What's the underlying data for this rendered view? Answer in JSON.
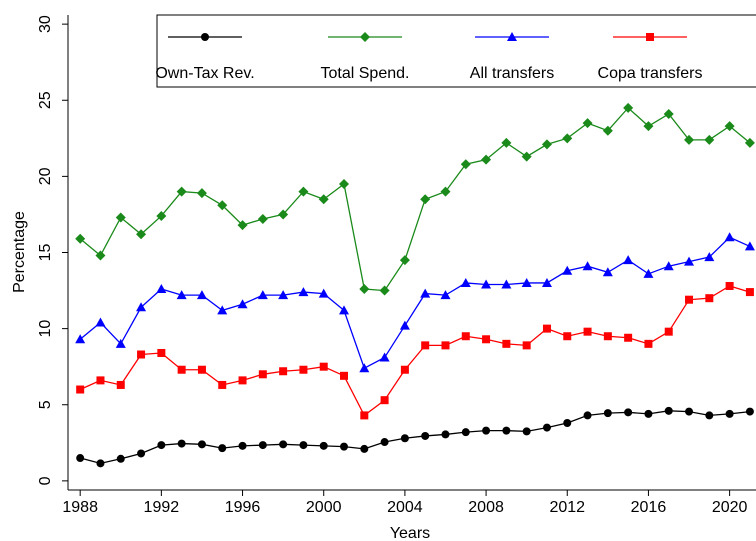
{
  "chart_data": {
    "type": "line",
    "x_label": "Years",
    "y_label": "Percentage",
    "x": [
      1988,
      1989,
      1990,
      1991,
      1992,
      1993,
      1994,
      1995,
      1996,
      1997,
      1998,
      1999,
      2000,
      2001,
      2002,
      2003,
      2004,
      2005,
      2006,
      2007,
      2008,
      2009,
      2010,
      2011,
      2012,
      2013,
      2014,
      2015,
      2016,
      2017,
      2018,
      2019,
      2020,
      2021
    ],
    "series": [
      {
        "name": "Own-Tax Rev.",
        "color": "#000000",
        "marker": "circle",
        "values": [
          1.5,
          1.15,
          1.45,
          1.8,
          2.35,
          2.45,
          2.4,
          2.15,
          2.3,
          2.35,
          2.4,
          2.35,
          2.3,
          2.25,
          2.1,
          2.55,
          2.8,
          2.95,
          3.05,
          3.2,
          3.3,
          3.3,
          3.25,
          3.5,
          3.8,
          4.3,
          4.45,
          4.5,
          4.4,
          4.6,
          4.55,
          4.3,
          4.4,
          4.55
        ]
      },
      {
        "name": "Total Spend.",
        "color": "#1a8a1a",
        "marker": "diamond",
        "values": [
          15.9,
          14.8,
          17.3,
          16.2,
          17.4,
          19,
          18.9,
          18.1,
          16.8,
          17.2,
          17.5,
          19,
          18.5,
          19.5,
          12.6,
          12.5,
          14.5,
          18.5,
          19,
          20.8,
          21.1,
          22.2,
          21.3,
          22.1,
          22.5,
          23.5,
          23,
          24.5,
          23.3,
          24.1,
          22.4,
          22.4,
          23.3,
          22.2
        ]
      },
      {
        "name": "All transfers",
        "color": "#0000ff",
        "marker": "triangle",
        "values": [
          9.3,
          10.4,
          9,
          11.4,
          12.6,
          12.2,
          12.2,
          11.2,
          11.6,
          12.2,
          12.2,
          12.4,
          12.3,
          11.2,
          7.4,
          8.1,
          10.2,
          12.3,
          12.2,
          13,
          12.9,
          12.9,
          13,
          13,
          13.8,
          14.1,
          13.7,
          14.5,
          13.6,
          14.1,
          14.4,
          14.7,
          16,
          15.4
        ]
      },
      {
        "name": "Copa transfers",
        "color": "#ff0000",
        "marker": "square",
        "values": [
          6,
          6.6,
          6.3,
          8.3,
          8.4,
          7.3,
          7.3,
          6.3,
          6.6,
          7,
          7.2,
          7.3,
          7.5,
          6.9,
          4.3,
          5.3,
          7.3,
          8.9,
          8.9,
          9.5,
          9.3,
          9,
          8.9,
          10,
          9.5,
          9.8,
          9.5,
          9.4,
          9,
          9.8,
          11.9,
          12,
          12.8,
          12.4
        ]
      }
    ],
    "xlim": [
      1987.4,
      2021.3
    ],
    "xticks": [
      1988,
      1992,
      1996,
      2000,
      2004,
      2008,
      2012,
      2016,
      2020
    ],
    "ylim": [
      -0.6,
      30.6
    ],
    "yticks": [
      0,
      5,
      10,
      15,
      20,
      25,
      30
    ],
    "legend": "top"
  }
}
